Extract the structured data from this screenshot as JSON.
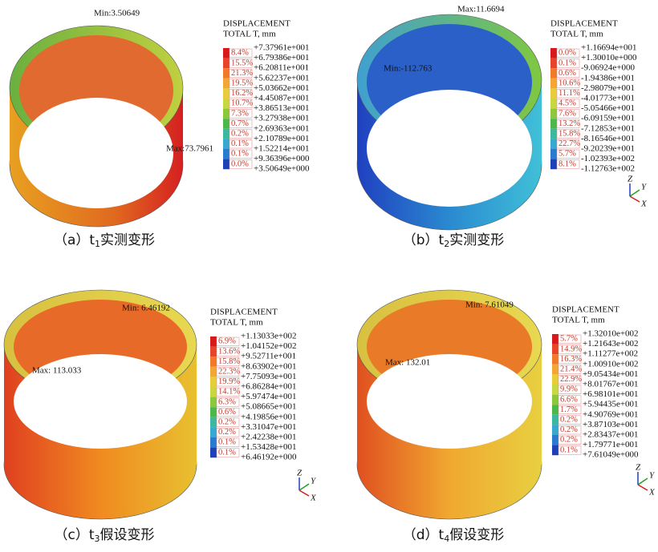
{
  "panels": [
    {
      "legend": {
        "title": "DISPLACEMENT",
        "unit": "TOTAL T, mm",
        "values": [
          "+7.37961e+001",
          "+6.79386e+001",
          "+6.20811e+001",
          "+5.62237e+001",
          "+5.03662e+001",
          "+4.45087e+001",
          "+3.86513e+001",
          "+3.27938e+001",
          "+2.69363e+001",
          "+2.10789e+001",
          "+1.52214e+001",
          "+9.36396e+000",
          "+3.50649e+000"
        ],
        "percents": [
          "8.4%",
          "15.5%",
          "21.3%",
          "19.5%",
          "16.2%",
          "10.7%",
          "7.3%",
          "0.7%",
          "0.2%",
          "0.1%",
          "0.1%",
          "0.0%"
        ]
      },
      "max_label": "Max:73.7961",
      "min_label": "Min:3.50649",
      "caption": {
        "prefix": "（a）t",
        "sub": "1",
        "suffix": "实测变形"
      }
    },
    {
      "legend": {
        "title": "DISPLACEMENT",
        "unit": "TOTAL T, mm",
        "values": [
          "+1.16694e+001",
          "+1.30010e+000",
          "-9.06924e+000",
          "-1.94386e+001",
          "-2.98079e+001",
          "-4.01773e+001",
          "-5.05466e+001",
          "-6.09159e+001",
          "-7.12853e+001",
          "-8.16546e+001",
          "-9.20239e+001",
          "-1.02393e+002",
          "-1.12763e+002"
        ],
        "percents": [
          "0.0%",
          "0.1%",
          "0.6%",
          "10.6%",
          "11.1%",
          "4.5%",
          "7.6%",
          "13.2%",
          "15.8%",
          "22.7%",
          "5.7%",
          "8.1%"
        ]
      },
      "max_label": "Max:11.6694",
      "min_label": "Min:-112.763",
      "caption": {
        "prefix": "（b）t",
        "sub": "2",
        "suffix": "实测变形"
      },
      "triad": {
        "z": "Z",
        "y": "Y",
        "x": "X"
      }
    },
    {
      "legend": {
        "title": "DISPLACEMENT",
        "unit": "TOTAL T, mm",
        "values": [
          "+1.13033e+002",
          "+1.04152e+002",
          "+9.52711e+001",
          "+8.63902e+001",
          "+7.75093e+001",
          "+6.86284e+001",
          "+5.97474e+001",
          "+5.08665e+001",
          "+4.19856e+001",
          "+3.31047e+001",
          "+2.42238e+001",
          "+1.53428e+001",
          "+6.46192e+000"
        ],
        "percents": [
          "6.9%",
          "13.6%",
          "15.8%",
          "22.3%",
          "19.9%",
          "14.1%",
          "6.3%",
          "0.6%",
          "0.2%",
          "0.2%",
          "0.1%",
          "0.1%"
        ]
      },
      "max_label": "Max: 113.033",
      "min_label": "Min: 6.46192",
      "caption": {
        "prefix": "（c）t",
        "sub": "3",
        "suffix": "假设变形"
      },
      "triad": {
        "z": "Z",
        "y": "Y",
        "x": "X"
      }
    },
    {
      "legend": {
        "title": "DISPLACEMENT",
        "unit": "TOTAL T, mm",
        "values": [
          "+1.32010e+002",
          "+1.21643e+002",
          "+1.11277e+002",
          "+1.00910e+002",
          "+9.05434e+001",
          "+8.01767e+001",
          "+6.98101e+001",
          "+5.94435e+001",
          "+4.90769e+001",
          "+3.87103e+001",
          "+2.83437e+001",
          "+1.79771e+001",
          "+7.61049e+000"
        ],
        "percents": [
          "5.7%",
          "14.9%",
          "16.3%",
          "21.4%",
          "22.9%",
          "9.9%",
          "6.6%",
          "1.7%",
          "0.2%",
          "0.2%",
          "0.2%",
          "0.1%"
        ]
      },
      "max_label": "Max: 132.01",
      "min_label": "Min: 7.61049",
      "caption": {
        "prefix": "（d）t",
        "sub": "4",
        "suffix": "假设变形"
      },
      "triad": {
        "z": "Z",
        "y": "Y",
        "x": "X"
      }
    }
  ]
}
